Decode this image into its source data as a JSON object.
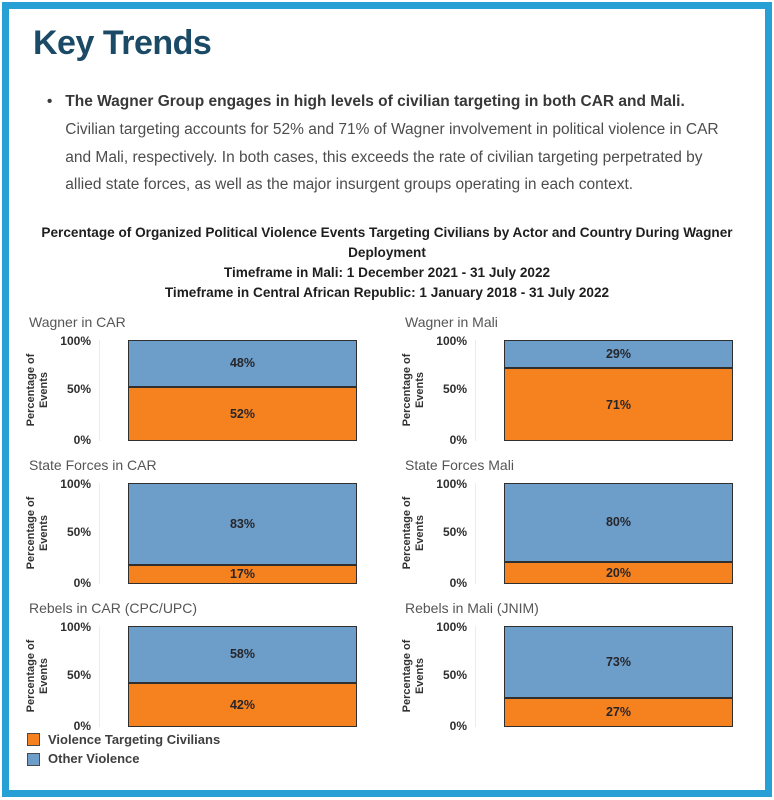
{
  "page": {
    "heading": "Key Trends",
    "bullet_marker": "•",
    "bullet_bold": "The Wagner Group engages in high levels of civilian targeting in both CAR and Mali.",
    "bullet_rest": "Civilian targeting accounts for 52% and 71% of Wagner involvement in political violence in CAR and Mali, respectively. In both cases, this exceeds the rate of civilian targeting perpetrated by allied state forces, as well as the major insurgent groups operating in each context."
  },
  "colors": {
    "accent_border": "#27A0D6",
    "heading_text": "#1B4A66",
    "violence_targeting_civilians": "#F5821F",
    "other_violence": "#6D9DC9",
    "bar_outline": "#2F2F2F"
  },
  "chart_data": {
    "type": "bar",
    "stacked": true,
    "title": "Percentage of Organized Political Violence Events Targeting Civilians by Actor and Country During Wagner Deployment",
    "subtitle_lines": [
      "Timeframe in Mali: 1 December 2021 - 31 July 2022",
      "Timeframe in Central African Republic: 1 January 2018 - 31 July 2022"
    ],
    "ylabel": "Percentage of Events",
    "ylabel_lines": [
      "Percentage of",
      "Events"
    ],
    "yticks": [
      "100%",
      "50%",
      "0%"
    ],
    "ylim": [
      0,
      100
    ],
    "grid": false,
    "legend_position": "bottom-left",
    "series_names": [
      "Violence Targeting Civilians",
      "Other Violence"
    ],
    "charts": [
      {
        "title": "Wagner in CAR",
        "violence_targeting_civilians": 52,
        "other_violence": 48
      },
      {
        "title": "Wagner in Mali",
        "violence_targeting_civilians": 71,
        "other_violence": 29
      },
      {
        "title": "State Forces in CAR",
        "violence_targeting_civilians": 17,
        "other_violence": 83
      },
      {
        "title": "State Forces Mali",
        "violence_targeting_civilians": 20,
        "other_violence": 80
      },
      {
        "title": "Rebels in CAR (CPC/UPC)",
        "violence_targeting_civilians": 42,
        "other_violence": 58
      },
      {
        "title": "Rebels in Mali (JNIM)",
        "violence_targeting_civilians": 27,
        "other_violence": 73
      }
    ]
  }
}
